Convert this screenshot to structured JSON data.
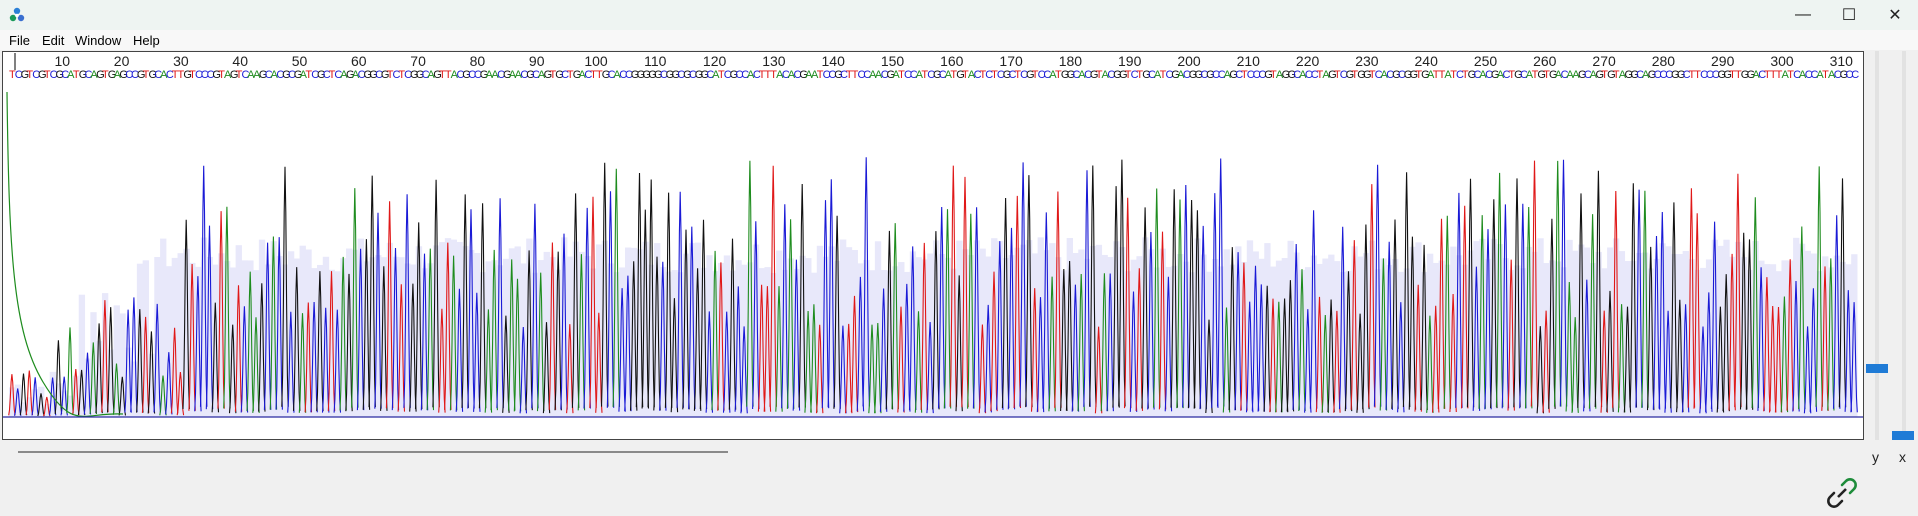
{
  "window": {
    "icon": "dna-app-icon",
    "controls": {
      "minimize": "—",
      "maximize": "☐",
      "close": "✕"
    }
  },
  "menu": [
    "File",
    "Edit",
    "Window",
    "Help"
  ],
  "ruler": {
    "ticks": [
      "10",
      "20",
      "30",
      "40",
      "50",
      "60",
      "70",
      "80",
      "90",
      "100",
      "110",
      "120",
      "130",
      "140",
      "150",
      "160",
      "170",
      "180",
      "190",
      "200",
      "210",
      "220",
      "230",
      "240",
      "250",
      "260",
      "270",
      "280",
      "290",
      "300",
      "310"
    ]
  },
  "trace": {
    "base_colors": {
      "A": "#1e8c1e",
      "C": "#1a1ad6",
      "G": "#111111",
      "T": "#e01818"
    },
    "quality_color": "#e8e8fa",
    "sequence": "TCGTCGTCGCATGCAGTGAGCCGTGCACTTGTCCCGTAGTCAAGCACGCGATCGCTCAGACGGCGTCTCGGCAGTTACGCCGAACGAACGCAGTGCTGACTTGCACCGGGGGCGGCGCGGCATCGCCACTTTACACGAATCCGCTTCCAACGATCCATCGCATGTACTCTCGCTCGTCCATGGCACGTACGGTCTGCATCGACGGCGCCAGCTCCCGTAGGCACCTAGTCGTGGTCACGCGGTGATTATCTGCACGACTGCATGTGACAAGCAGTGTAGGCAGCCCGGCTTCCCGGTTGGACTTTATCACCATACGCC"
  },
  "scrollbars": {
    "y_label": "y",
    "x_label": "x"
  },
  "status": {
    "icon": "link-icon"
  }
}
